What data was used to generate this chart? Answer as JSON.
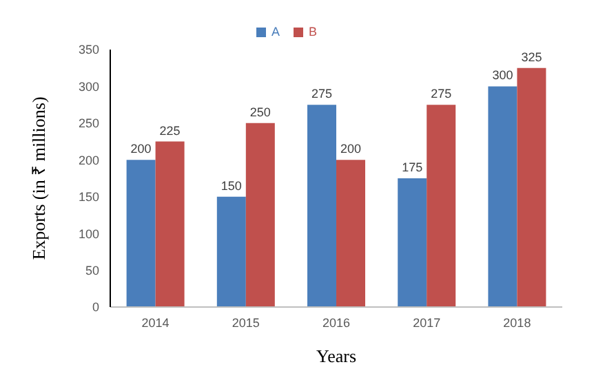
{
  "chart_data": {
    "type": "bar",
    "xlabel": "Years",
    "ylabel": "Exports (in ₹ millions)",
    "categories": [
      "2014",
      "2015",
      "2016",
      "2017",
      "2018"
    ],
    "series": [
      {
        "name": "A",
        "color": "#4a7ebb",
        "values": [
          200,
          150,
          275,
          175,
          300
        ]
      },
      {
        "name": "B",
        "color": "#c0504d",
        "values": [
          225,
          250,
          200,
          275,
          325
        ]
      }
    ],
    "ylim": [
      0,
      350
    ],
    "yticks": [
      0,
      50,
      100,
      150,
      200,
      250,
      300,
      350
    ],
    "data_labels": true,
    "legend": "top",
    "grid": false
  }
}
